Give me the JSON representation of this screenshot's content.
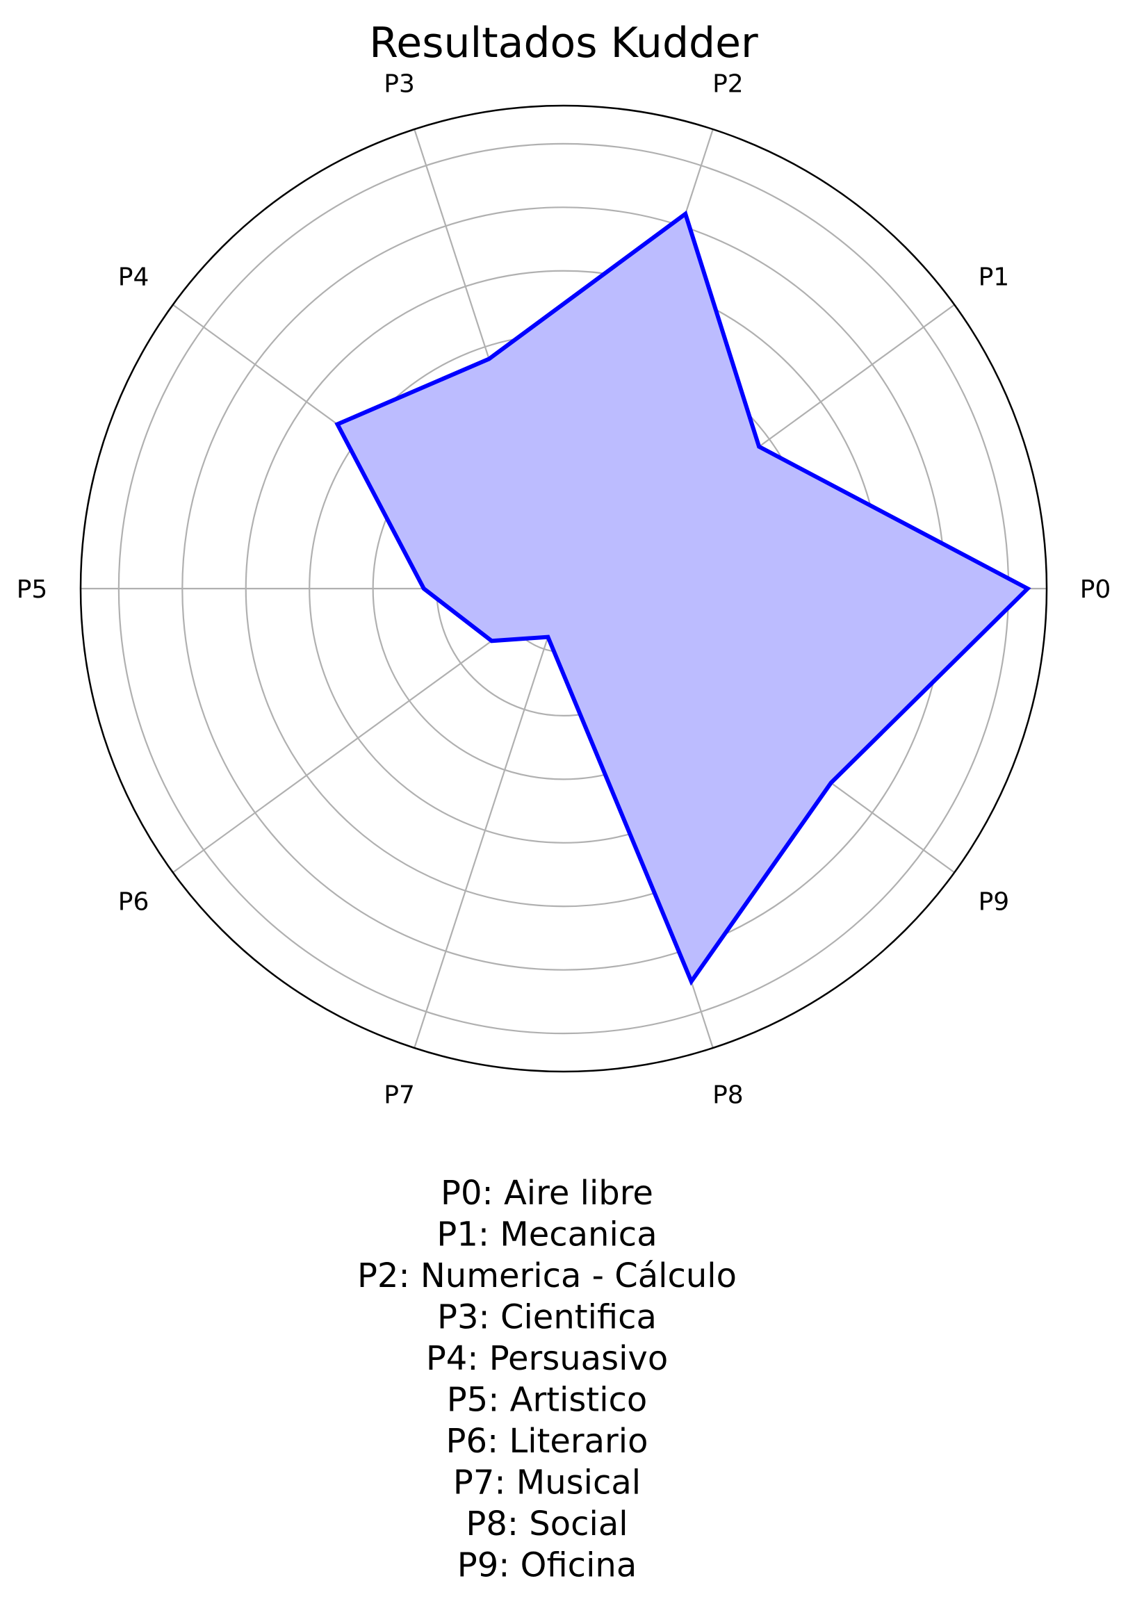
{
  "chart_data": {
    "type": "radar",
    "title": "Resultados Kudder",
    "categories": [
      "P0",
      "P1",
      "P2",
      "P3",
      "P4",
      "P5",
      "P6",
      "P7",
      "P8",
      "P9"
    ],
    "values": [
      7.3,
      3.8,
      6.2,
      3.8,
      4.4,
      2.2,
      1.4,
      0.8,
      6.5,
      5.2
    ],
    "rmax": 7.6,
    "grid_rings": [
      1,
      2,
      3,
      4,
      5,
      6,
      7
    ],
    "grid": true,
    "series_color": "#0000ff",
    "fill_color": "#bcbcff",
    "grid_color": "#b0b0b0",
    "legend_lines": [
      "P0: Aire libre",
      "P1: Mecanica",
      "P2: Numerica - Cálculo",
      "P3: Cientifica",
      "P4: Persuasivo",
      "P5: Artistico",
      "P6: Literario",
      "P7: Musical",
      "P8: Social",
      "P9: Oficina"
    ]
  }
}
